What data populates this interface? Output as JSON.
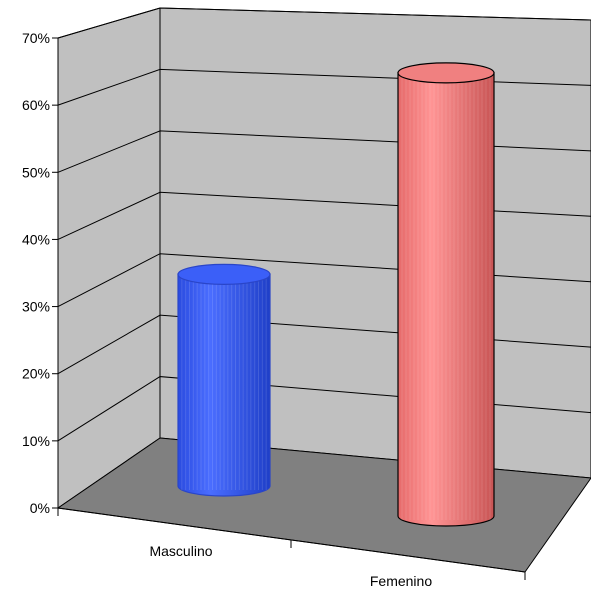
{
  "chart_data": {
    "type": "bar",
    "style": "3d-cylinder",
    "categories": [
      "Masculino",
      "Femenino"
    ],
    "values": [
      32,
      67
    ],
    "ylim": [
      0,
      70
    ],
    "yticks": [
      "0%",
      "10%",
      "20%",
      "30%",
      "40%",
      "50%",
      "60%",
      "70%"
    ],
    "colors": [
      "#2f55f0",
      "#f07a7a"
    ],
    "wall_color": "#c0c0c0",
    "floor_color": "#808080",
    "grid": true,
    "legend": "none",
    "title": "",
    "xlabel": "",
    "ylabel": ""
  }
}
